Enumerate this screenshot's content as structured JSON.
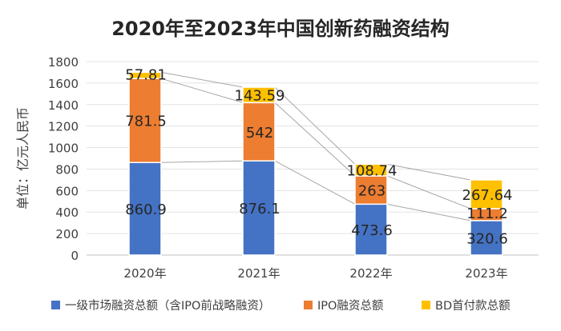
{
  "chart_data": {
    "type": "bar",
    "stacked": true,
    "title": "2020年至2023年中国创新药融资结构",
    "ylabel": "单位：亿元人民币",
    "xlabel": "",
    "ylim": [
      0,
      1800
    ],
    "yticks": [
      0,
      200,
      400,
      600,
      800,
      1000,
      1200,
      1400,
      1600,
      1800
    ],
    "grid": true,
    "legend_position": "bottom",
    "categories": [
      "2020年",
      "2021年",
      "2022年",
      "2023年"
    ],
    "series": [
      {
        "name": "一级市场融资总额（含IPO前战略融资）",
        "color": "#4472C4",
        "values": [
          860.9,
          876.1,
          473.6,
          320.6
        ],
        "labels": [
          "860.9",
          "876.1",
          "473.6",
          "320.6"
        ]
      },
      {
        "name": "IPO融资总额",
        "color": "#ED7D31",
        "values": [
          781.5,
          542,
          263,
          111.2
        ],
        "labels": [
          "781.5",
          "542",
          "263",
          "111.2"
        ]
      },
      {
        "name": "BD首付款总额",
        "color": "#FFC000",
        "values": [
          57.81,
          143.59,
          108.74,
          267.64
        ],
        "labels": [
          "57.81",
          "143.59",
          "108.74",
          "267.64"
        ]
      }
    ]
  }
}
